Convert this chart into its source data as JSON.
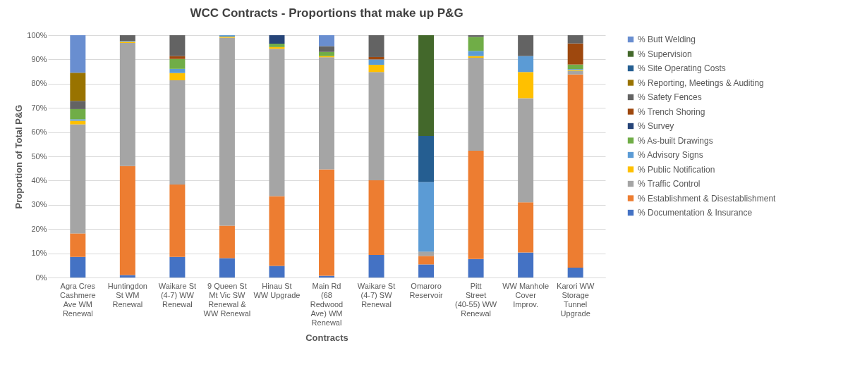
{
  "chart_data": {
    "type": "bar",
    "stacked": true,
    "title": "WCC Contracts - Proportions that make up P&G",
    "xlabel": "Contracts",
    "ylabel": "Proportion of Total P&G",
    "categories": [
      "Agra Cres Cashmere Ave WM Renewal",
      "Huntingdon St WM Renewal",
      "Waikare St (4-7) WW Renewal",
      "9 Queen St Mt Vic SW Renewal & WW Renewal",
      "Hinau St WW Upgrade",
      "Main Rd (68 Redwood Ave) WM Renewal",
      "Waikare St (4-7) SW Renewal",
      "Omaroro Reservoir",
      "Pitt Street (40-55) WW Renewal",
      "WW Manhole Cover Improv.",
      "Karori WW Storage Tunnel Upgrade"
    ],
    "ylim": [
      0,
      100
    ],
    "yticks": [
      {
        "value": 0,
        "label": "0%"
      },
      {
        "value": 10,
        "label": "10%"
      },
      {
        "value": 20,
        "label": "20%"
      },
      {
        "value": 30,
        "label": "30%"
      },
      {
        "value": 40,
        "label": "40%"
      },
      {
        "value": 50,
        "label": "50%"
      },
      {
        "value": 60,
        "label": "60%"
      },
      {
        "value": 70,
        "label": "70%"
      },
      {
        "value": 80,
        "label": "80%"
      },
      {
        "value": 90,
        "label": "90%"
      },
      {
        "value": 100,
        "label": "100%"
      }
    ],
    "grid": "y",
    "legend": "right",
    "series": [
      {
        "name": "% Documentation & Insurance",
        "color": "#4472c4",
        "values": [
          8.5,
          1.0,
          8.5,
          8.0,
          4.8,
          0.7,
          9.3,
          5.4,
          7.6,
          10.3,
          4.1
        ]
      },
      {
        "name": "% Establishment & Disestablishment",
        "color": "#ed7d31",
        "values": [
          9.7,
          45.0,
          29.9,
          13.4,
          28.8,
          43.9,
          30.8,
          3.5,
          44.7,
          20.7,
          79.7
        ]
      },
      {
        "name": "% Traffic Control",
        "color": "#a5a5a5",
        "values": [
          45.0,
          50.8,
          43.0,
          77.6,
          60.8,
          46.3,
          44.7,
          1.8,
          38.4,
          43.0,
          1.4
        ]
      },
      {
        "name": "% Public Notification",
        "color": "#ffc000",
        "values": [
          1.5,
          0.5,
          3.0,
          0.4,
          0.7,
          0.5,
          3.0,
          null,
          0.7,
          10.8,
          0.4
        ]
      },
      {
        "name": "% Advisory Signs",
        "color": "#5b9bd5",
        "values": [
          0.6,
          0.3,
          1.7,
          0.6,
          null,
          null,
          2.2,
          28.7,
          2.1,
          6.6,
          0.4
        ]
      },
      {
        "name": "% As-built Drawings",
        "color": "#70ad47",
        "values": [
          4.2,
          null,
          4.1,
          null,
          1.4,
          1.7,
          null,
          null,
          5.8,
          null,
          1.9
        ]
      },
      {
        "name": "% Survey",
        "color": "#264478",
        "values": [
          null,
          null,
          null,
          null,
          3.5,
          null,
          null,
          null,
          null,
          null,
          null
        ]
      },
      {
        "name": "% Trench Shoring",
        "color": "#9e480e",
        "values": [
          null,
          null,
          1.2,
          null,
          null,
          null,
          1.0,
          null,
          null,
          null,
          8.7
        ]
      },
      {
        "name": "% Safety Fences",
        "color": "#636363",
        "values": [
          3.4,
          2.4,
          8.6,
          null,
          null,
          2.4,
          9.0,
          null,
          0.7,
          8.6,
          3.4
        ]
      },
      {
        "name": "% Reporting, Meetings & Auditing",
        "color": "#997300",
        "values": [
          11.6,
          null,
          null,
          null,
          null,
          null,
          null,
          null,
          null,
          null,
          null
        ]
      },
      {
        "name": "% Site Operating Costs",
        "color": "#255e91",
        "values": [
          null,
          null,
          null,
          null,
          null,
          null,
          null,
          19.0,
          null,
          null,
          null
        ]
      },
      {
        "name": "% Supervision",
        "color": "#43682b",
        "values": [
          null,
          null,
          null,
          null,
          null,
          null,
          null,
          41.6,
          null,
          null,
          null
        ]
      },
      {
        "name": "% Butt Welding",
        "color": "#698ed0",
        "values": [
          15.5,
          null,
          null,
          null,
          null,
          4.5,
          null,
          null,
          null,
          null,
          null
        ]
      }
    ]
  }
}
